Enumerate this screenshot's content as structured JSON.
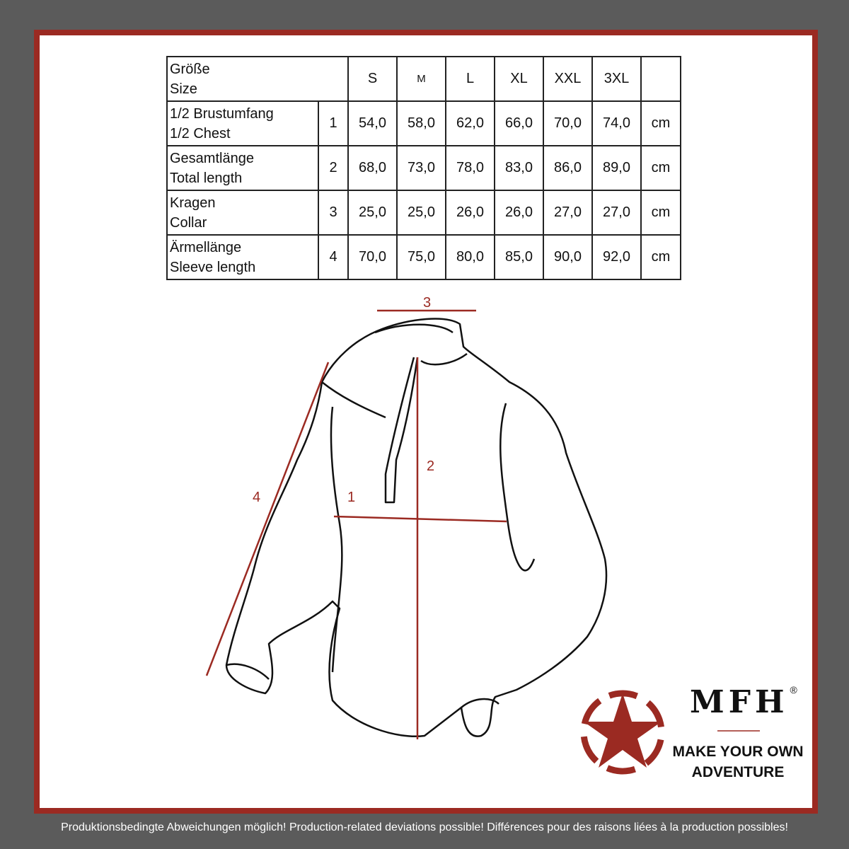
{
  "table": {
    "header": {
      "label_de": "Größe",
      "label_en": "Size",
      "sizes": [
        "S",
        "M",
        "L",
        "XL",
        "XXL",
        "3XL"
      ]
    },
    "rows": [
      {
        "label_de": "1/2 Brustumfang",
        "label_en": "1/2 Chest",
        "num": "1",
        "values": [
          "54,0",
          "58,0",
          "62,0",
          "66,0",
          "70,0",
          "74,0"
        ],
        "unit": "cm"
      },
      {
        "label_de": "Gesamtlänge",
        "label_en": "Total length",
        "num": "2",
        "values": [
          "68,0",
          "73,0",
          "78,0",
          "83,0",
          "86,0",
          "89,0"
        ],
        "unit": "cm"
      },
      {
        "label_de": "Kragen",
        "label_en": "Collar",
        "num": "3",
        "values": [
          "25,0",
          "25,0",
          "26,0",
          "26,0",
          "27,0",
          "27,0"
        ],
        "unit": "cm"
      },
      {
        "label_de": "Ärmellänge",
        "label_en": "Sleeve length",
        "num": "4",
        "values": [
          "70,0",
          "75,0",
          "80,0",
          "85,0",
          "90,0",
          "92,0"
        ],
        "unit": "cm"
      }
    ]
  },
  "diagram": {
    "labels": [
      "1",
      "2",
      "3",
      "4"
    ]
  },
  "brand": {
    "logo": "MFH",
    "registered": "®",
    "tagline_1": "MAKE YOUR OWN",
    "tagline_2": "ADVENTURE",
    "accent": "#9b2a22"
  },
  "footer": "Produktionsbedingte Abweichungen möglich! Production-related deviations possible! Différences pour des raisons liées à la production possibles!"
}
